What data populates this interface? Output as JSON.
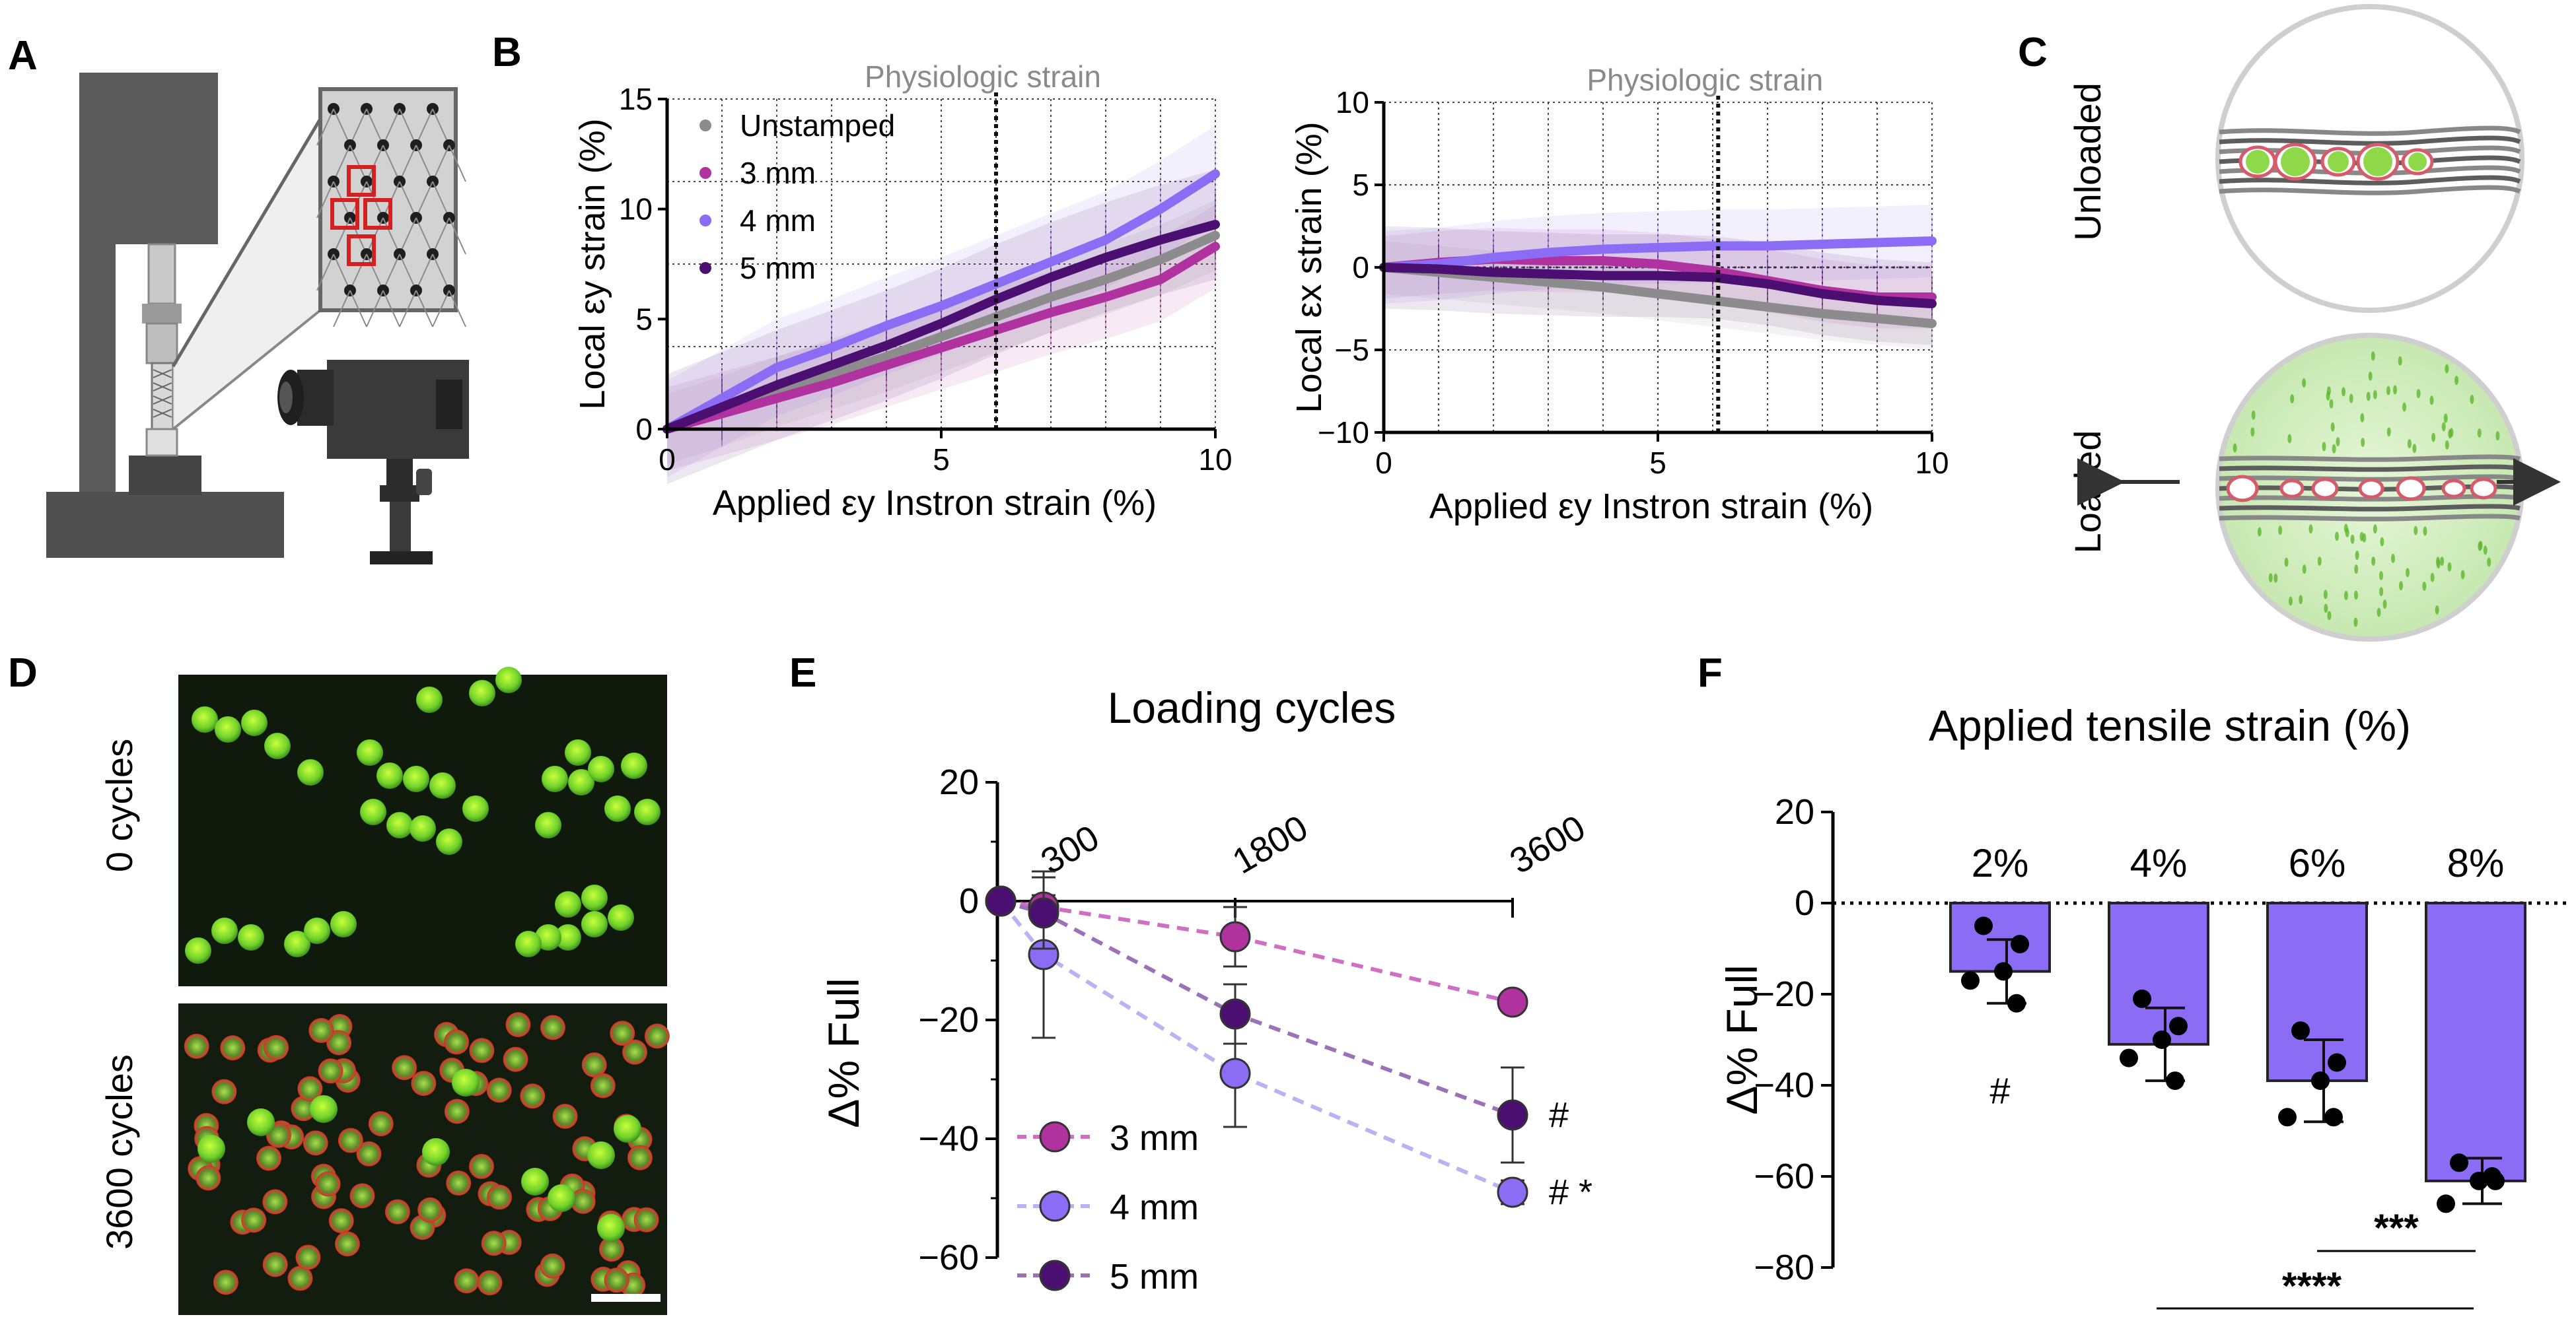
{
  "panels": {
    "A": "A",
    "B": "B",
    "C": "C",
    "D": "D",
    "E": "E",
    "F": "F"
  },
  "colors": {
    "unstamped": "#8c8c8c",
    "mm3": "#b0329f",
    "mm4": "#8b6cf5",
    "mm5": "#4a0f70",
    "bar": "#8b6cf5",
    "physio_label": "#8a8a8a"
  },
  "panel_c": {
    "unloaded": "Unloaded",
    "loaded": "Loaded"
  },
  "panel_d": {
    "top_label": "0 cycles",
    "bottom_label": "3600 cycles"
  },
  "chart_data": [
    {
      "id": "B-left",
      "type": "line",
      "ylabel": "Local εy strain (%)",
      "xlabel": "Applied εy Instron strain (%)",
      "annotation": "Physiologic strain",
      "vline_x": 6,
      "xlim": [
        0,
        10
      ],
      "ylim": [
        0,
        15
      ],
      "xticks": [
        "0",
        "5",
        "10"
      ],
      "yticks": [
        "0",
        "5",
        "10",
        "15"
      ],
      "grid": true,
      "legend": "top-left",
      "x": [
        0,
        1,
        2,
        3,
        4,
        5,
        6,
        7,
        8,
        9,
        10
      ],
      "series": [
        {
          "name": "Unstamped",
          "values": [
            0,
            0.8,
            1.7,
            2.5,
            3.3,
            4.2,
            5.1,
            6.0,
            6.8,
            7.7,
            8.8
          ]
        },
        {
          "name": "3 mm",
          "values": [
            0,
            0.7,
            1.4,
            2.1,
            2.9,
            3.7,
            4.5,
            5.3,
            6.0,
            6.8,
            8.3
          ]
        },
        {
          "name": "4 mm",
          "values": [
            0,
            1.4,
            2.8,
            3.7,
            4.7,
            5.6,
            6.6,
            7.6,
            8.6,
            10.0,
            11.6
          ]
        },
        {
          "name": "5 mm",
          "values": [
            0,
            1.0,
            2.0,
            2.9,
            3.8,
            4.8,
            5.9,
            6.9,
            7.8,
            8.6,
            9.3
          ]
        }
      ]
    },
    {
      "id": "B-right",
      "type": "line",
      "ylabel": "Local εx strain (%)",
      "xlabel": "Applied εy Instron strain (%)",
      "annotation": "Physiologic strain",
      "vline_x": 6.1,
      "xlim": [
        0,
        10
      ],
      "ylim": [
        -10,
        10
      ],
      "xticks": [
        "0",
        "5",
        "10"
      ],
      "yticks": [
        "10",
        "5",
        "0",
        "−5",
        "−10"
      ],
      "grid": true,
      "x": [
        0,
        1,
        2,
        3,
        4,
        5,
        6,
        7,
        8,
        9,
        10
      ],
      "series": [
        {
          "name": "Unstamped",
          "values": [
            0,
            -0.3,
            -0.6,
            -0.9,
            -1.2,
            -1.6,
            -2.0,
            -2.4,
            -2.8,
            -3.1,
            -3.4
          ]
        },
        {
          "name": "3 mm",
          "values": [
            0,
            0.3,
            0.5,
            0.4,
            0.4,
            0.2,
            -0.2,
            -0.8,
            -1.4,
            -1.8,
            -1.8
          ]
        },
        {
          "name": "4 mm",
          "values": [
            0,
            0.2,
            0.6,
            0.9,
            1.1,
            1.2,
            1.3,
            1.3,
            1.4,
            1.5,
            1.6
          ]
        },
        {
          "name": "5 mm",
          "values": [
            0,
            -0.1,
            -0.3,
            -0.4,
            -0.5,
            -0.5,
            -0.6,
            -1.0,
            -1.6,
            -2.0,
            -2.2
          ]
        }
      ]
    },
    {
      "id": "E",
      "type": "line",
      "title": "Loading cycles",
      "ylabel": "Δ% Full",
      "ylim": [
        -60,
        20
      ],
      "yticks": [
        "20",
        "0",
        "−20",
        "−40",
        "−60"
      ],
      "categories": [
        "0",
        "300",
        "1800",
        "3600"
      ],
      "xtick_labels": [
        "300",
        "1800",
        "3600"
      ],
      "legend": "bottom-left",
      "series": [
        {
          "name": "3 mm",
          "values": [
            0,
            -1,
            -6,
            -17
          ],
          "err": [
            0,
            2,
            5,
            1
          ]
        },
        {
          "name": "4 mm",
          "values": [
            0,
            -9,
            -29,
            -49
          ],
          "err": [
            0,
            14,
            9,
            2
          ]
        },
        {
          "name": "5 mm",
          "values": [
            0,
            -2,
            -19,
            -36
          ],
          "err": [
            0,
            6,
            5,
            8
          ]
        }
      ],
      "annotations": [
        {
          "series": "5 mm",
          "text": "#"
        },
        {
          "series": "4 mm",
          "text": "# *"
        }
      ]
    },
    {
      "id": "F",
      "type": "bar",
      "title": "Applied tensile strain (%)",
      "ylabel": "Δ% Full",
      "ylim": [
        -80,
        20
      ],
      "yticks": [
        "20",
        "0",
        "−20",
        "−40",
        "−60",
        "−80"
      ],
      "categories": [
        "2%",
        "4%",
        "6%",
        "8%"
      ],
      "values": [
        -15,
        -31,
        -39,
        -61
      ],
      "err": [
        7,
        8,
        9,
        5
      ],
      "points": [
        [
          -5,
          -9,
          -17,
          -22,
          -15
        ],
        [
          -21,
          -27,
          -34,
          -39,
          -30
        ],
        [
          -28,
          -35,
          -47,
          -47,
          -39
        ],
        [
          -57,
          -61,
          -66,
          -60,
          -61
        ]
      ],
      "annotations": [
        {
          "category": "2%",
          "text": "#"
        },
        {
          "between": [
            "6%",
            "8%"
          ],
          "text": "***"
        },
        {
          "between": [
            "2%",
            "8%"
          ],
          "text": "****"
        }
      ]
    }
  ]
}
